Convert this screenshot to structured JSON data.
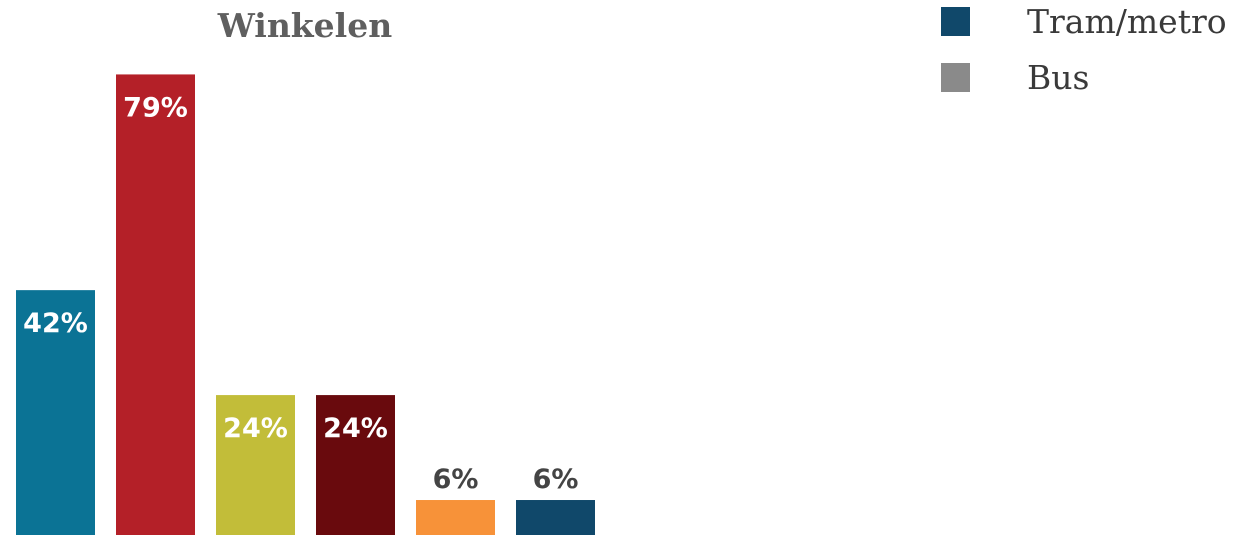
{
  "chart_data": {
    "type": "bar",
    "title": "Winkelen",
    "xlabel": "",
    "ylabel": "",
    "ylim": [
      0,
      100
    ],
    "grid": false,
    "legend_position": "top-right",
    "categories": [
      "",
      "",
      "",
      "",
      "",
      ""
    ],
    "values": [
      42,
      79,
      24,
      24,
      6,
      6
    ],
    "data_labels": [
      "42%",
      "79%",
      "24%",
      "24%",
      "6%",
      "6%"
    ],
    "bar_colors": [
      "#0b7395",
      "#b42028",
      "#c2bd39",
      "#690a0d",
      "#f79239",
      "#10486a"
    ],
    "label_colors": [
      "#ffffff",
      "#ffffff",
      "#ffffff",
      "#ffffff",
      "#444444",
      "#444444"
    ],
    "legend": [
      {
        "label": "Tram/metro",
        "color": "#10486a"
      },
      {
        "label": "Bus",
        "color": "#8a8a8a"
      }
    ]
  }
}
